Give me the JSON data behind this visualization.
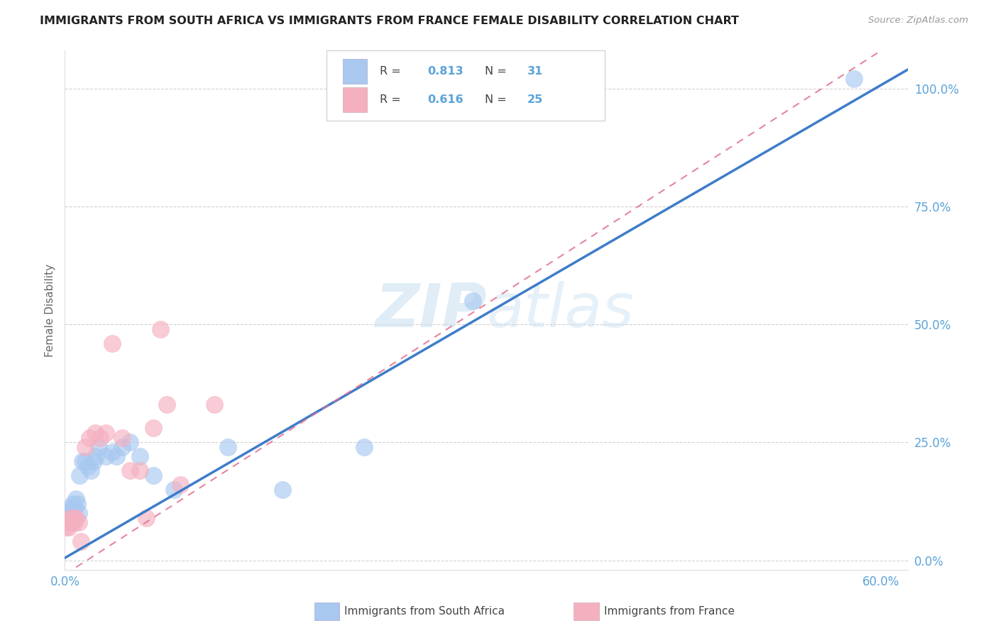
{
  "title": "IMMIGRANTS FROM SOUTH AFRICA VS IMMIGRANTS FROM FRANCE FEMALE DISABILITY CORRELATION CHART",
  "source": "Source: ZipAtlas.com",
  "ylabel_label": "Female Disability",
  "xlim": [
    0.0,
    0.62
  ],
  "ylim": [
    -0.02,
    1.08
  ],
  "xticks": [
    0.0,
    0.1,
    0.2,
    0.3,
    0.4,
    0.5,
    0.6
  ],
  "xtick_labels": [
    "0.0%",
    "",
    "",
    "",
    "",
    "",
    "60.0%"
  ],
  "ytick_labels": [
    "0.0%",
    "25.0%",
    "50.0%",
    "75.0%",
    "100.0%"
  ],
  "yticks": [
    0.0,
    0.25,
    0.5,
    0.75,
    1.0
  ],
  "watermark": "ZIPatlas",
  "blue_color": "#a8c8f0",
  "pink_color": "#f5b0c0",
  "blue_line_color": "#3d7cc9",
  "pink_line_color": "#e07090",
  "right_axis_color": "#5ba3d9",
  "blue_line_slope": 1.67,
  "blue_line_intercept": 0.005,
  "pink_line_slope": 1.85,
  "pink_line_intercept": -0.03,
  "south_africa_x": [
    0.001,
    0.002,
    0.003,
    0.004,
    0.005,
    0.006,
    0.007,
    0.008,
    0.009,
    0.01,
    0.011,
    0.013,
    0.015,
    0.017,
    0.019,
    0.021,
    0.023,
    0.025,
    0.03,
    0.035,
    0.038,
    0.042,
    0.048,
    0.055,
    0.065,
    0.08,
    0.12,
    0.16,
    0.22,
    0.3,
    0.58
  ],
  "south_africa_y": [
    0.08,
    0.1,
    0.09,
    0.11,
    0.1,
    0.12,
    0.11,
    0.13,
    0.12,
    0.1,
    0.18,
    0.21,
    0.21,
    0.2,
    0.19,
    0.21,
    0.22,
    0.24,
    0.22,
    0.23,
    0.22,
    0.24,
    0.25,
    0.22,
    0.18,
    0.15,
    0.24,
    0.15,
    0.24,
    0.55,
    1.02
  ],
  "france_x": [
    0.001,
    0.002,
    0.003,
    0.004,
    0.005,
    0.006,
    0.007,
    0.008,
    0.01,
    0.012,
    0.015,
    0.018,
    0.022,
    0.026,
    0.03,
    0.035,
    0.042,
    0.048,
    0.055,
    0.06,
    0.065,
    0.07,
    0.075,
    0.085,
    0.11
  ],
  "france_y": [
    0.07,
    0.08,
    0.07,
    0.09,
    0.08,
    0.09,
    0.08,
    0.09,
    0.08,
    0.04,
    0.24,
    0.26,
    0.27,
    0.26,
    0.27,
    0.46,
    0.26,
    0.19,
    0.19,
    0.09,
    0.28,
    0.49,
    0.33,
    0.16,
    0.33
  ]
}
